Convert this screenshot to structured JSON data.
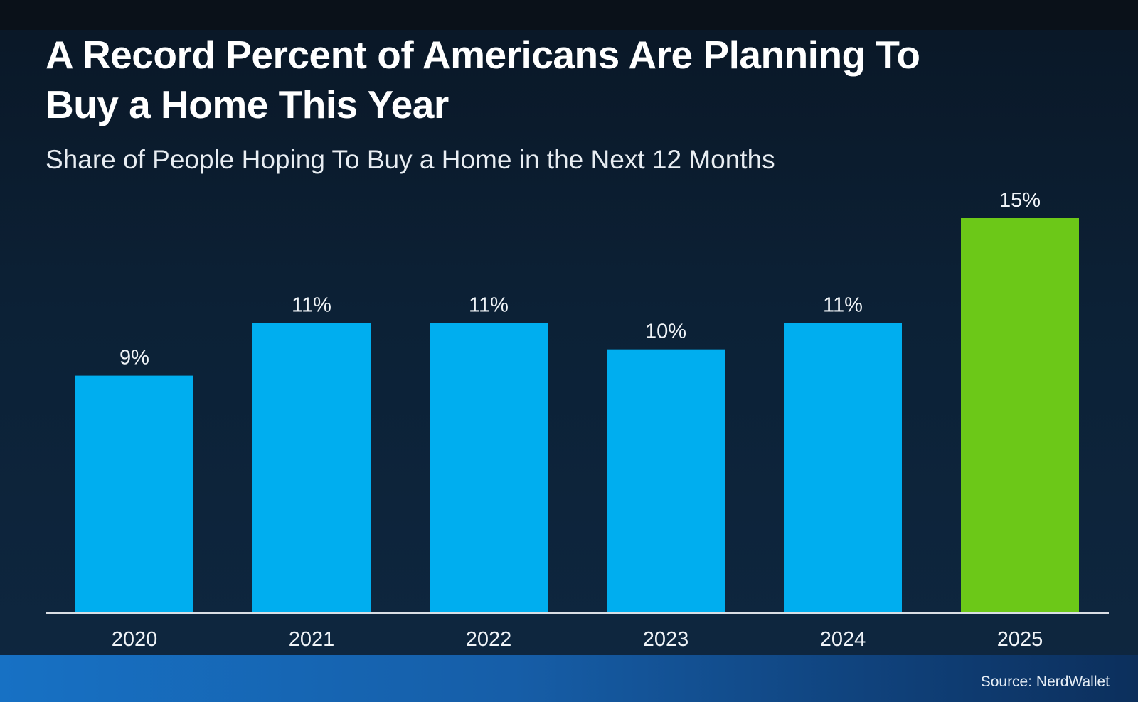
{
  "title": "A Record Percent of Americans Are Planning To\nBuy a Home This Year",
  "subtitle": "Share of People Hoping To Buy a Home in the Next 12 Months",
  "source": "Source: NerdWallet",
  "colors": {
    "bar_default": "#00aeef",
    "bar_highlight": "#6cc818",
    "axis_line": "#d9dee4",
    "label_text": "#f0f4f8"
  },
  "chart_data": {
    "type": "bar",
    "categories": [
      "2020",
      "2021",
      "2022",
      "2023",
      "2024",
      "2025"
    ],
    "values": [
      9,
      11,
      11,
      10,
      11,
      15
    ],
    "value_labels": [
      "9%",
      "11%",
      "11%",
      "10%",
      "11%",
      "15%"
    ],
    "highlight_category": "2025",
    "ylim": [
      0,
      15
    ],
    "grid": false,
    "legend": "none"
  }
}
